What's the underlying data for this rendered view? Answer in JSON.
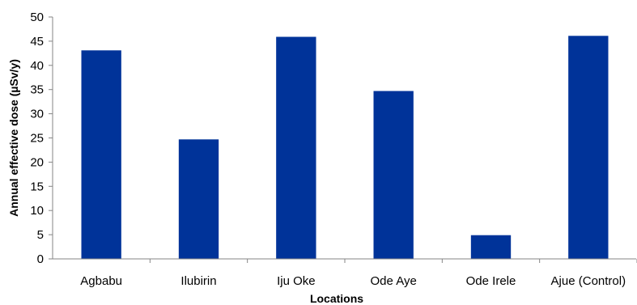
{
  "chart_data": {
    "type": "bar",
    "title": "",
    "xlabel": "Locations",
    "ylabel": "Annual effective dose (µSv/y)",
    "categories": [
      "Agbabu",
      "Ilubirin",
      "Iju Oke",
      "Ode Aye",
      "Ode Irele",
      "Ajue (Control)"
    ],
    "values": [
      43.1,
      24.7,
      45.9,
      34.7,
      4.9,
      46.1
    ],
    "ylim": [
      0,
      50
    ],
    "yticks": [
      "0",
      "5",
      "10",
      "15",
      "20",
      "25",
      "30",
      "35",
      "40",
      "45",
      "50"
    ],
    "grid": false,
    "legend": "none",
    "bar_color": "#003399"
  }
}
